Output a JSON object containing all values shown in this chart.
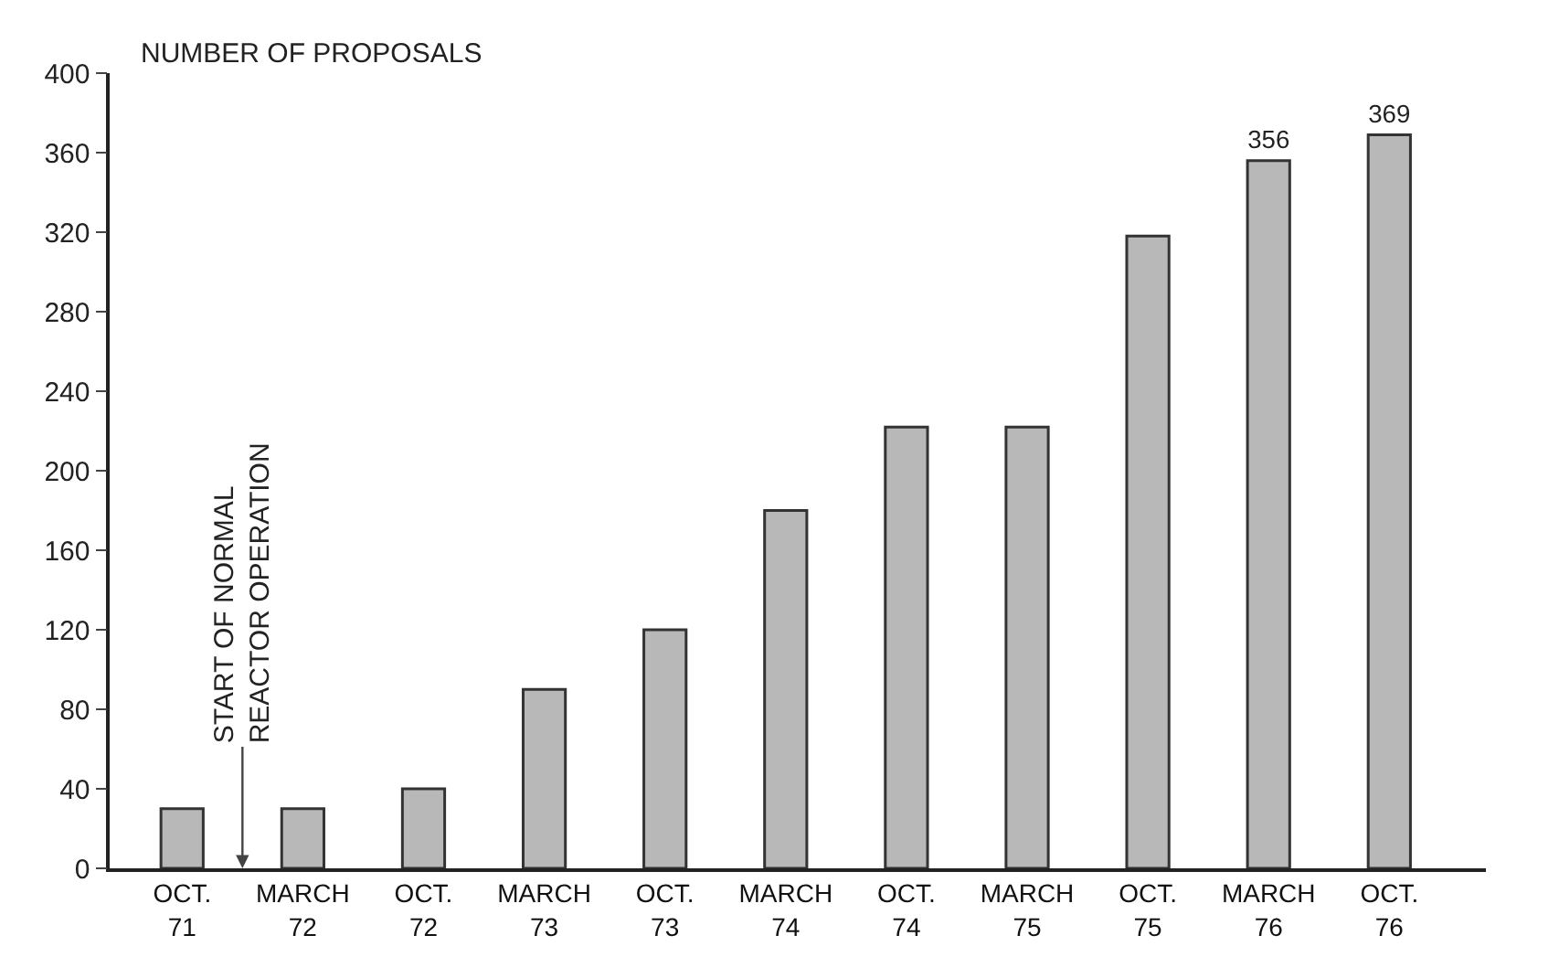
{
  "chart_data": {
    "type": "bar",
    "ylabel": "NUMBER OF PROPOSALS",
    "categories": [
      "OCT.\n71",
      "MARCH\n72",
      "OCT.\n72",
      "MARCH\n73",
      "OCT.\n73",
      "MARCH\n74",
      "OCT.\n74",
      "MARCH\n75",
      "OCT.\n75",
      "MARCH\n76",
      "OCT.\n76"
    ],
    "values": [
      30,
      30,
      40,
      90,
      120,
      180,
      222,
      222,
      318,
      356,
      369
    ],
    "value_labels": [
      null,
      null,
      null,
      null,
      null,
      null,
      null,
      null,
      null,
      "356",
      "369"
    ],
    "color": "#b8b8b8",
    "ylim": [
      0,
      400
    ],
    "yticks": [
      0,
      40,
      80,
      120,
      160,
      200,
      240,
      280,
      320,
      360,
      400
    ],
    "grid": false,
    "annotations": [
      "START OF NORMAL\nREACTOR OPERATION"
    ]
  }
}
